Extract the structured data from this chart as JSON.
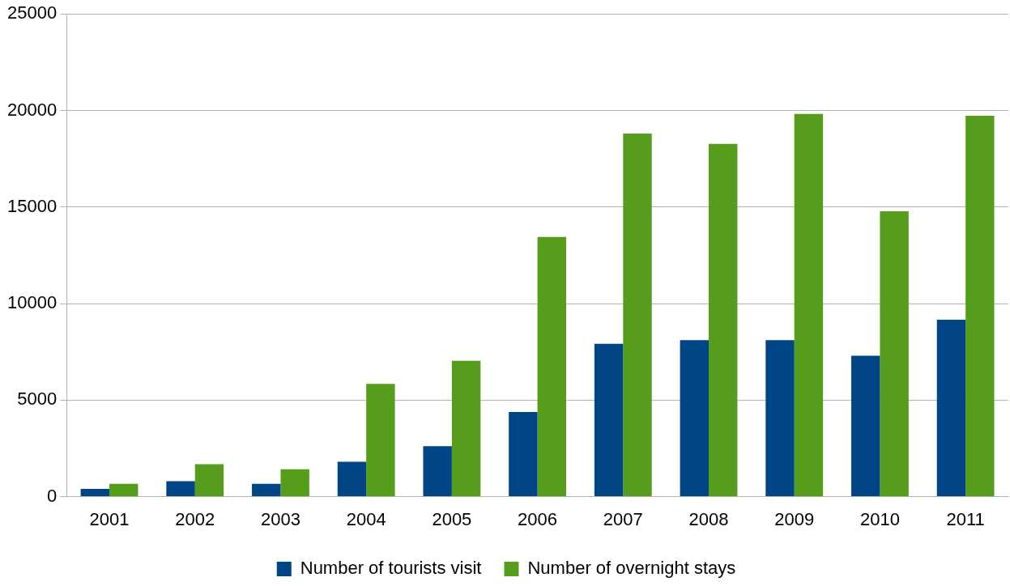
{
  "chart_data": {
    "type": "bar",
    "categories": [
      "2001",
      "2002",
      "2003",
      "2004",
      "2005",
      "2006",
      "2007",
      "2008",
      "2009",
      "2010",
      "2011"
    ],
    "series": [
      {
        "name": "Number of tourists visit",
        "color": "#004586",
        "values": [
          400,
          800,
          660,
          1810,
          2610,
          4380,
          7920,
          8100,
          8100,
          7300,
          9160
        ]
      },
      {
        "name": "Number of overnight stays",
        "color": "#579d1c",
        "values": [
          660,
          1680,
          1420,
          5840,
          7040,
          13450,
          18800,
          18270,
          19820,
          14780,
          19730
        ]
      }
    ],
    "ylim": [
      0,
      25000
    ],
    "yticks": [
      0,
      5000,
      10000,
      15000,
      20000,
      25000
    ],
    "grid": "y",
    "legend": "bottom"
  }
}
